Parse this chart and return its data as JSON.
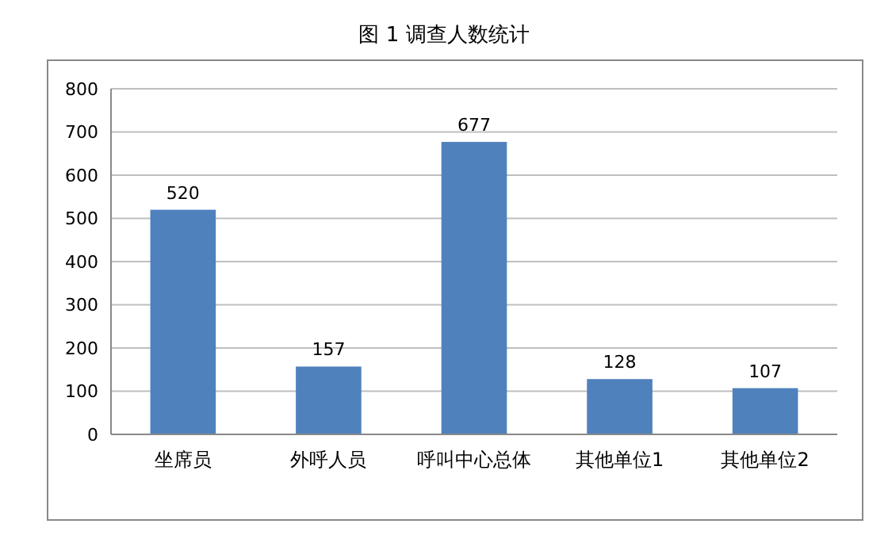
{
  "chart_data": {
    "type": "bar",
    "title": "图 1  调查人数统计",
    "categories": [
      "坐席员",
      "外呼人员",
      "呼叫中心总体",
      "其他单位1",
      "其他单位2"
    ],
    "values": [
      520,
      157,
      677,
      128,
      107
    ],
    "color": "#4f81bd",
    "ylim": [
      0,
      800
    ],
    "yticks": [
      0,
      100,
      200,
      300,
      400,
      500,
      600,
      700,
      800
    ],
    "grid": "y",
    "data_labels": true
  }
}
